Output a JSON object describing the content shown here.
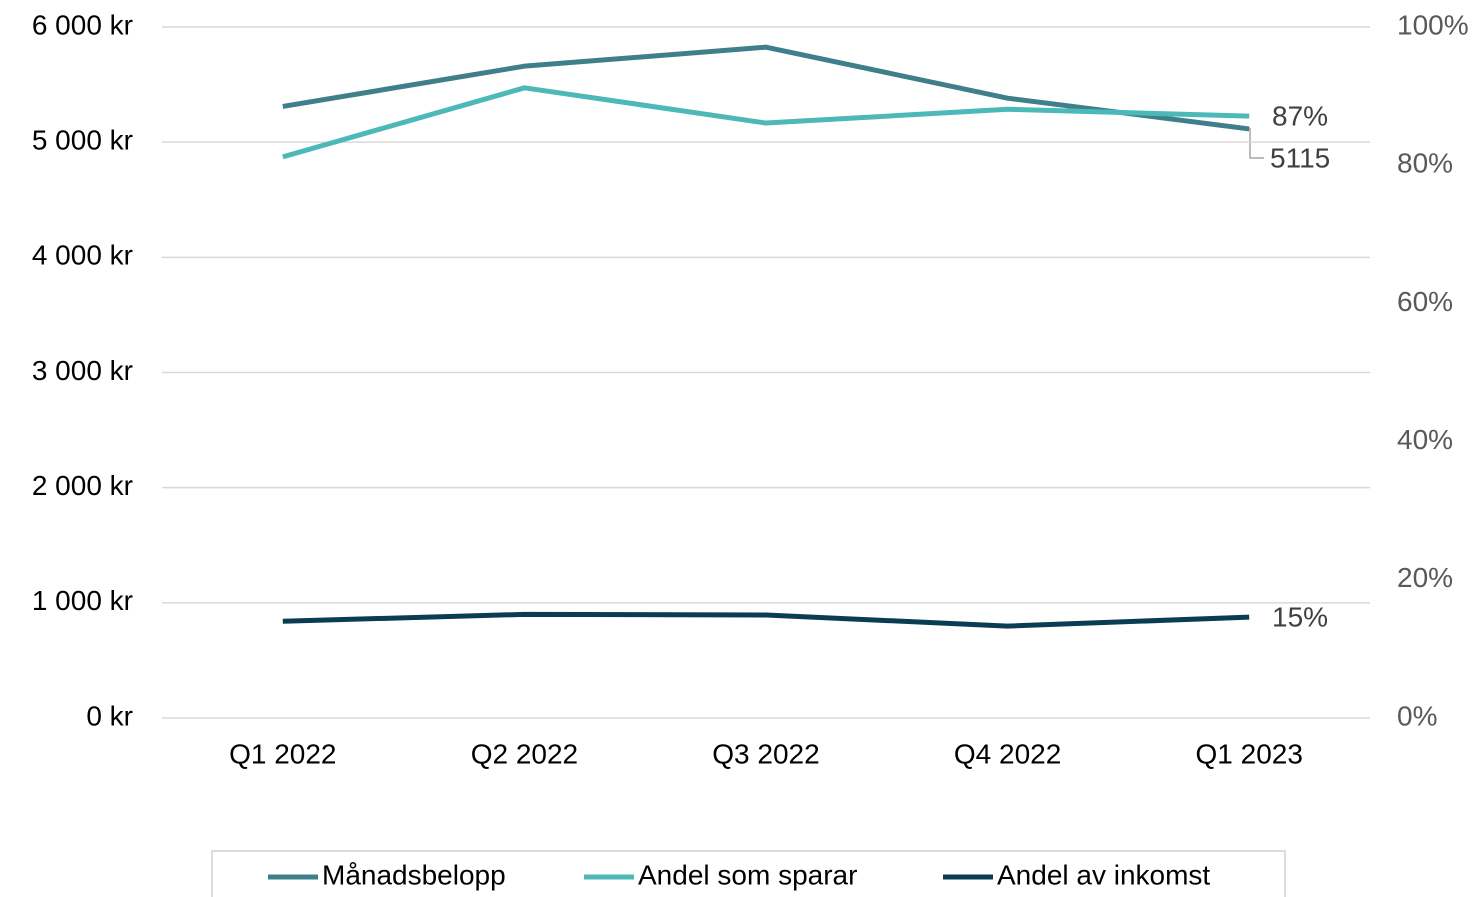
{
  "chart_data": {
    "type": "line",
    "categories": [
      "Q1 2022",
      "Q2 2022",
      "Q3 2022",
      "Q4 2022",
      "Q1 2023"
    ],
    "series": [
      {
        "name": "Månadsbelopp",
        "color": "#3f7f8c",
        "values": [
          5310,
          5660,
          5825,
          5382,
          5115
        ],
        "axis": "y"
      },
      {
        "name": "Andel som sparar",
        "color": "#4db8b8",
        "values": [
          81.2,
          91.2,
          86.1,
          88.1,
          87.1
        ],
        "axis": "y2",
        "value_labels": [
          null,
          null,
          null,
          null,
          "87%"
        ]
      },
      {
        "name": "Andel av inkomst",
        "color": "#0a3d52",
        "values": [
          14.0,
          15.0,
          14.9,
          13.3,
          14.6
        ],
        "axis": "y2",
        "value_labels": [
          null,
          null,
          null,
          null,
          "15%"
        ]
      }
    ],
    "ylim": [
      0,
      6000
    ],
    "yticks": [
      {
        "value": 0,
        "label": "0 kr"
      },
      {
        "value": 1000,
        "label": "1 000 kr"
      },
      {
        "value": 2000,
        "label": "2 000 kr"
      },
      {
        "value": 3000,
        "label": "3 000 kr"
      },
      {
        "value": 4000,
        "label": "4 000 kr"
      },
      {
        "value": 5000,
        "label": "5 000 kr"
      },
      {
        "value": 6000,
        "label": "6 000 kr"
      }
    ],
    "y2lim": [
      0,
      100
    ],
    "y2ticks": [
      {
        "value": 0,
        "label": "0%"
      },
      {
        "value": 20,
        "label": "20%"
      },
      {
        "value": 40,
        "label": "40%"
      },
      {
        "value": 60,
        "label": "60%"
      },
      {
        "value": 80,
        "label": "80%"
      },
      {
        "value": 100,
        "label": "100%"
      }
    ],
    "grid": true,
    "legend": "bottom"
  }
}
